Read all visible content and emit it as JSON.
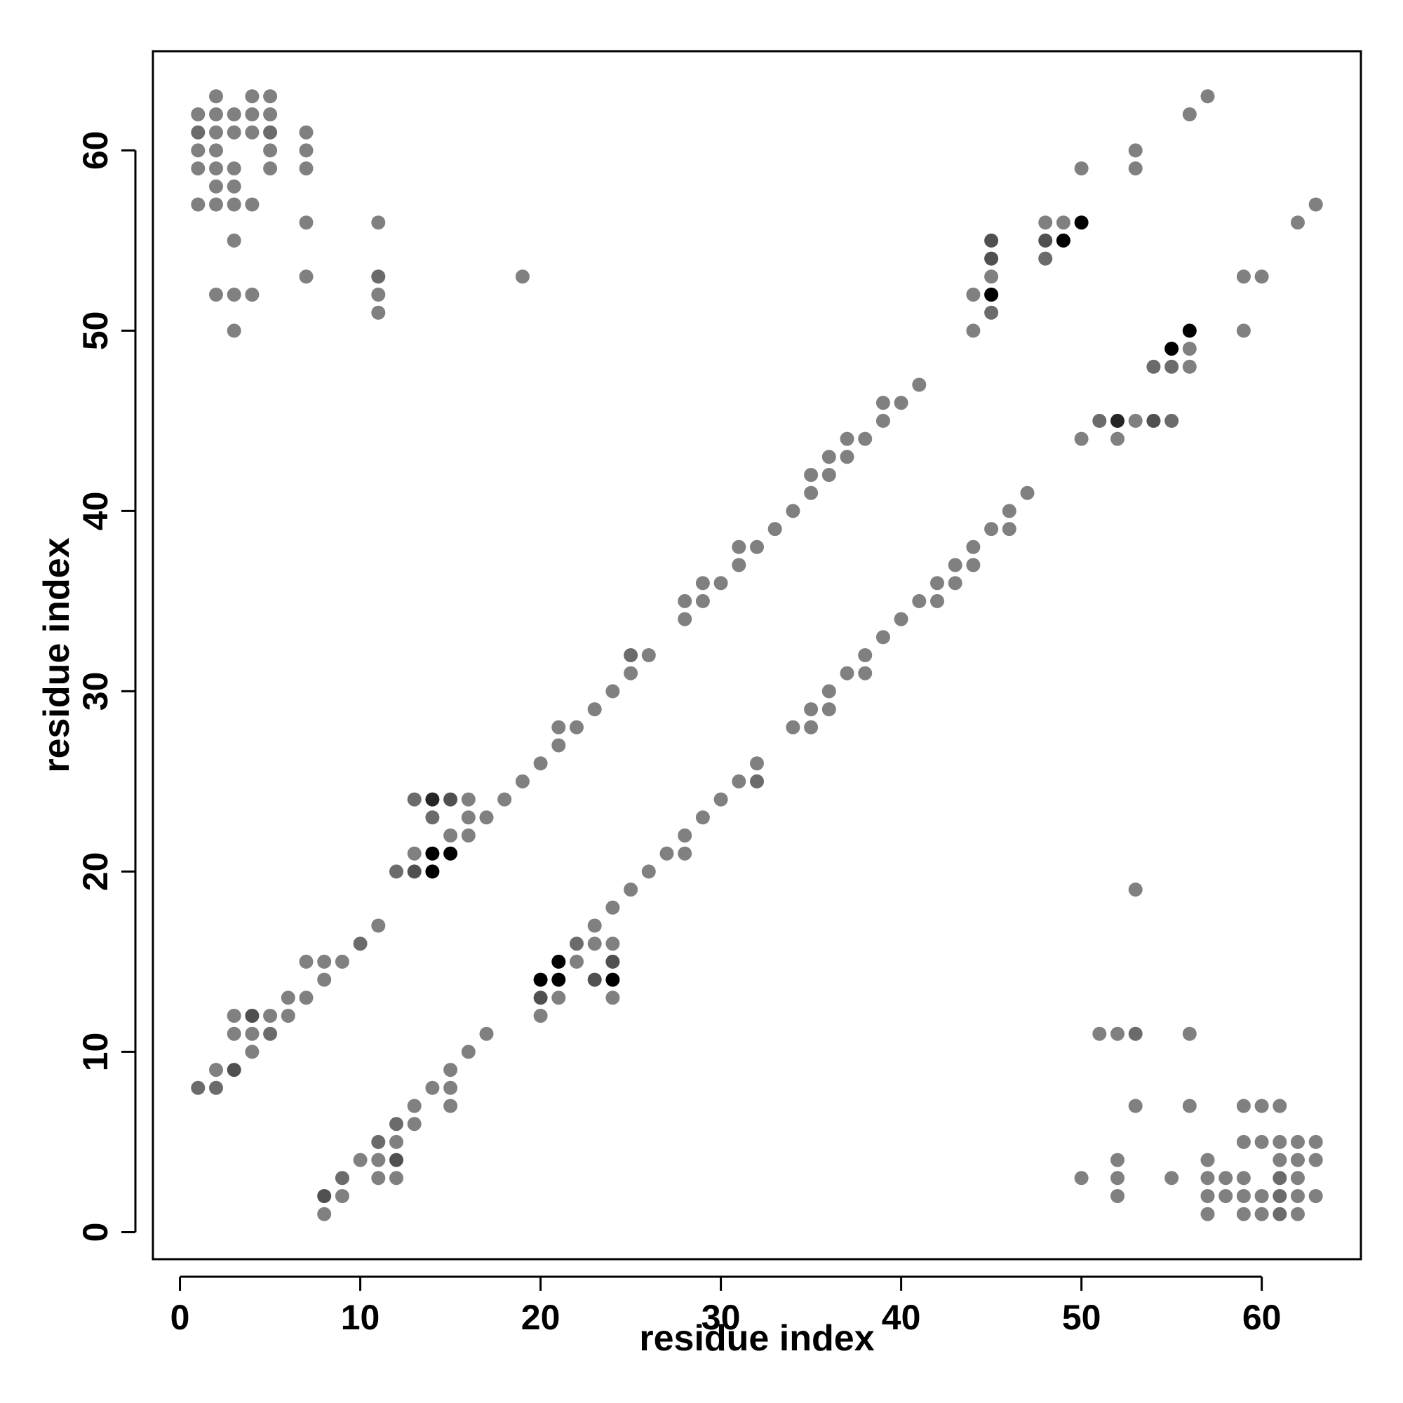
{
  "chart_data": {
    "type": "scatter",
    "title": "",
    "xlabel": "residue index",
    "ylabel": "residue index",
    "xlim": [
      -1.5,
      65.5
    ],
    "ylim": [
      -1.5,
      65.5
    ],
    "xticks": [
      "0",
      "10",
      "20",
      "30",
      "40",
      "50",
      "60"
    ],
    "yticks": [
      "0",
      "10",
      "20",
      "30",
      "40",
      "50",
      "60"
    ],
    "grid": false,
    "legend": "none",
    "shade_scale": {
      "0": "#808080",
      "1": "#6b6b6b",
      "2": "#505050",
      "3": "#262626",
      "4": "#000000"
    },
    "points": [
      [
        1,
        8,
        1
      ],
      [
        2,
        8,
        1
      ],
      [
        2,
        9,
        0
      ],
      [
        3,
        9,
        2
      ],
      [
        3,
        11,
        0
      ],
      [
        3,
        12,
        0
      ],
      [
        4,
        10,
        0
      ],
      [
        4,
        11,
        0
      ],
      [
        4,
        12,
        2
      ],
      [
        5,
        11,
        1
      ],
      [
        5,
        12,
        0
      ],
      [
        6,
        12,
        0
      ],
      [
        6,
        13,
        0
      ],
      [
        7,
        13,
        0
      ],
      [
        7,
        15,
        0
      ],
      [
        8,
        14,
        0
      ],
      [
        8,
        15,
        0
      ],
      [
        9,
        15,
        0
      ],
      [
        10,
        16,
        1
      ],
      [
        11,
        17,
        0
      ],
      [
        12,
        20,
        1
      ],
      [
        13,
        20,
        2
      ],
      [
        13,
        21,
        0
      ],
      [
        13,
        24,
        1
      ],
      [
        14,
        20,
        4
      ],
      [
        14,
        21,
        4
      ],
      [
        14,
        23,
        1
      ],
      [
        14,
        24,
        3
      ],
      [
        15,
        21,
        4
      ],
      [
        15,
        22,
        0
      ],
      [
        15,
        24,
        2
      ],
      [
        16,
        22,
        0
      ],
      [
        16,
        23,
        0
      ],
      [
        16,
        24,
        0
      ],
      [
        17,
        23,
        0
      ],
      [
        18,
        24,
        0
      ],
      [
        19,
        25,
        0
      ],
      [
        20,
        26,
        0
      ],
      [
        21,
        27,
        0
      ],
      [
        21,
        28,
        0
      ],
      [
        22,
        28,
        0
      ],
      [
        23,
        29,
        0
      ],
      [
        24,
        30,
        0
      ],
      [
        25,
        31,
        0
      ],
      [
        25,
        32,
        1
      ],
      [
        26,
        32,
        0
      ],
      [
        28,
        34,
        0
      ],
      [
        28,
        35,
        0
      ],
      [
        29,
        35,
        0
      ],
      [
        29,
        36,
        0
      ],
      [
        30,
        36,
        0
      ],
      [
        31,
        37,
        0
      ],
      [
        31,
        38,
        0
      ],
      [
        32,
        38,
        0
      ],
      [
        33,
        39,
        0
      ],
      [
        34,
        40,
        0
      ],
      [
        35,
        41,
        0
      ],
      [
        35,
        42,
        0
      ],
      [
        36,
        42,
        0
      ],
      [
        36,
        43,
        0
      ],
      [
        37,
        43,
        0
      ],
      [
        37,
        44,
        0
      ],
      [
        38,
        44,
        0
      ],
      [
        39,
        45,
        0
      ],
      [
        39,
        46,
        0
      ],
      [
        40,
        46,
        0
      ],
      [
        41,
        47,
        0
      ],
      [
        8,
        1,
        0
      ],
      [
        8,
        2,
        2
      ],
      [
        9,
        2,
        0
      ],
      [
        9,
        3,
        1
      ],
      [
        10,
        4,
        0
      ],
      [
        11,
        3,
        0
      ],
      [
        11,
        4,
        0
      ],
      [
        11,
        5,
        1
      ],
      [
        12,
        3,
        0
      ],
      [
        12,
        4,
        2
      ],
      [
        12,
        5,
        0
      ],
      [
        12,
        6,
        1
      ],
      [
        13,
        6,
        0
      ],
      [
        13,
        7,
        0
      ],
      [
        14,
        8,
        0
      ],
      [
        15,
        7,
        0
      ],
      [
        15,
        8,
        0
      ],
      [
        15,
        9,
        0
      ],
      [
        16,
        10,
        0
      ],
      [
        17,
        11,
        0
      ],
      [
        20,
        12,
        0
      ],
      [
        20,
        13,
        2
      ],
      [
        20,
        14,
        4
      ],
      [
        21,
        13,
        0
      ],
      [
        21,
        14,
        4
      ],
      [
        21,
        15,
        4
      ],
      [
        22,
        15,
        0
      ],
      [
        22,
        16,
        1
      ],
      [
        23,
        14,
        2
      ],
      [
        23,
        16,
        0
      ],
      [
        23,
        17,
        0
      ],
      [
        24,
        13,
        0
      ],
      [
        24,
        14,
        4
      ],
      [
        24,
        15,
        2
      ],
      [
        24,
        16,
        0
      ],
      [
        24,
        18,
        0
      ],
      [
        25,
        19,
        0
      ],
      [
        26,
        20,
        0
      ],
      [
        27,
        21,
        0
      ],
      [
        28,
        21,
        0
      ],
      [
        28,
        22,
        0
      ],
      [
        29,
        23,
        0
      ],
      [
        30,
        24,
        0
      ],
      [
        31,
        25,
        0
      ],
      [
        32,
        25,
        1
      ],
      [
        32,
        26,
        0
      ],
      [
        34,
        28,
        0
      ],
      [
        35,
        28,
        0
      ],
      [
        35,
        29,
        0
      ],
      [
        36,
        29,
        0
      ],
      [
        36,
        30,
        0
      ],
      [
        37,
        31,
        0
      ],
      [
        38,
        31,
        0
      ],
      [
        38,
        32,
        0
      ],
      [
        39,
        33,
        0
      ],
      [
        40,
        34,
        0
      ],
      [
        41,
        35,
        0
      ],
      [
        42,
        35,
        0
      ],
      [
        42,
        36,
        0
      ],
      [
        43,
        36,
        0
      ],
      [
        43,
        37,
        0
      ],
      [
        44,
        37,
        0
      ],
      [
        44,
        38,
        0
      ],
      [
        45,
        39,
        0
      ],
      [
        46,
        39,
        0
      ],
      [
        46,
        40,
        0
      ],
      [
        47,
        41,
        0
      ],
      [
        44,
        50,
        0
      ],
      [
        44,
        52,
        0
      ],
      [
        45,
        51,
        1
      ],
      [
        45,
        52,
        4
      ],
      [
        45,
        53,
        0
      ],
      [
        45,
        54,
        2
      ],
      [
        45,
        55,
        2
      ],
      [
        48,
        54,
        1
      ],
      [
        48,
        55,
        2
      ],
      [
        48,
        56,
        0
      ],
      [
        49,
        55,
        4
      ],
      [
        49,
        56,
        0
      ],
      [
        50,
        56,
        4
      ],
      [
        50,
        59,
        0
      ],
      [
        53,
        59,
        0
      ],
      [
        53,
        60,
        0
      ],
      [
        56,
        62,
        0
      ],
      [
        57,
        63,
        0
      ],
      [
        62,
        56,
        0
      ],
      [
        63,
        57,
        0
      ],
      [
        59,
        50,
        0
      ],
      [
        59,
        53,
        0
      ],
      [
        60,
        53,
        0
      ],
      [
        50,
        44,
        0
      ],
      [
        51,
        45,
        1
      ],
      [
        52,
        44,
        0
      ],
      [
        52,
        45,
        3
      ],
      [
        53,
        45,
        0
      ],
      [
        54,
        45,
        2
      ],
      [
        54,
        48,
        1
      ],
      [
        55,
        45,
        1
      ],
      [
        55,
        48,
        1
      ],
      [
        55,
        49,
        4
      ],
      [
        56,
        48,
        0
      ],
      [
        56,
        49,
        0
      ],
      [
        56,
        50,
        4
      ],
      [
        1,
        57,
        0
      ],
      [
        1,
        59,
        0
      ],
      [
        1,
        60,
        0
      ],
      [
        1,
        61,
        1
      ],
      [
        1,
        62,
        0
      ],
      [
        2,
        57,
        0
      ],
      [
        2,
        58,
        0
      ],
      [
        2,
        59,
        0
      ],
      [
        2,
        60,
        0
      ],
      [
        2,
        61,
        0
      ],
      [
        2,
        62,
        0
      ],
      [
        2,
        63,
        0
      ],
      [
        3,
        55,
        0
      ],
      [
        3,
        57,
        0
      ],
      [
        3,
        58,
        0
      ],
      [
        3,
        59,
        0
      ],
      [
        3,
        61,
        0
      ],
      [
        3,
        62,
        0
      ],
      [
        4,
        57,
        0
      ],
      [
        4,
        61,
        0
      ],
      [
        4,
        62,
        0
      ],
      [
        4,
        63,
        0
      ],
      [
        5,
        59,
        0
      ],
      [
        5,
        60,
        0
      ],
      [
        5,
        61,
        1
      ],
      [
        5,
        62,
        0
      ],
      [
        5,
        63,
        0
      ],
      [
        7,
        59,
        0
      ],
      [
        7,
        60,
        0
      ],
      [
        7,
        61,
        0
      ],
      [
        7,
        56,
        0
      ],
      [
        7,
        53,
        0
      ],
      [
        2,
        52,
        0
      ],
      [
        3,
        50,
        0
      ],
      [
        3,
        52,
        0
      ],
      [
        4,
        52,
        0
      ],
      [
        11,
        51,
        0
      ],
      [
        11,
        52,
        0
      ],
      [
        11,
        53,
        1
      ],
      [
        11,
        56,
        0
      ],
      [
        19,
        53,
        0
      ],
      [
        51,
        11,
        0
      ],
      [
        52,
        11,
        0
      ],
      [
        53,
        11,
        1
      ],
      [
        56,
        11,
        0
      ],
      [
        53,
        19,
        0
      ],
      [
        53,
        7,
        0
      ],
      [
        56,
        7,
        0
      ],
      [
        50,
        3,
        0
      ],
      [
        52,
        2,
        0
      ],
      [
        52,
        3,
        0
      ],
      [
        52,
        4,
        0
      ],
      [
        55,
        3,
        0
      ],
      [
        57,
        1,
        0
      ],
      [
        57,
        2,
        0
      ],
      [
        57,
        3,
        0
      ],
      [
        57,
        4,
        0
      ],
      [
        58,
        2,
        0
      ],
      [
        58,
        3,
        0
      ],
      [
        59,
        1,
        0
      ],
      [
        59,
        2,
        0
      ],
      [
        59,
        3,
        0
      ],
      [
        59,
        5,
        0
      ],
      [
        59,
        7,
        0
      ],
      [
        60,
        1,
        0
      ],
      [
        60,
        2,
        0
      ],
      [
        60,
        5,
        0
      ],
      [
        60,
        7,
        0
      ],
      [
        61,
        1,
        1
      ],
      [
        61,
        2,
        1
      ],
      [
        61,
        3,
        1
      ],
      [
        61,
        4,
        0
      ],
      [
        61,
        5,
        0
      ],
      [
        61,
        7,
        0
      ],
      [
        62,
        1,
        0
      ],
      [
        62,
        2,
        0
      ],
      [
        62,
        3,
        0
      ],
      [
        62,
        4,
        0
      ],
      [
        62,
        5,
        0
      ],
      [
        63,
        2,
        0
      ],
      [
        63,
        4,
        0
      ],
      [
        63,
        5,
        0
      ]
    ]
  }
}
